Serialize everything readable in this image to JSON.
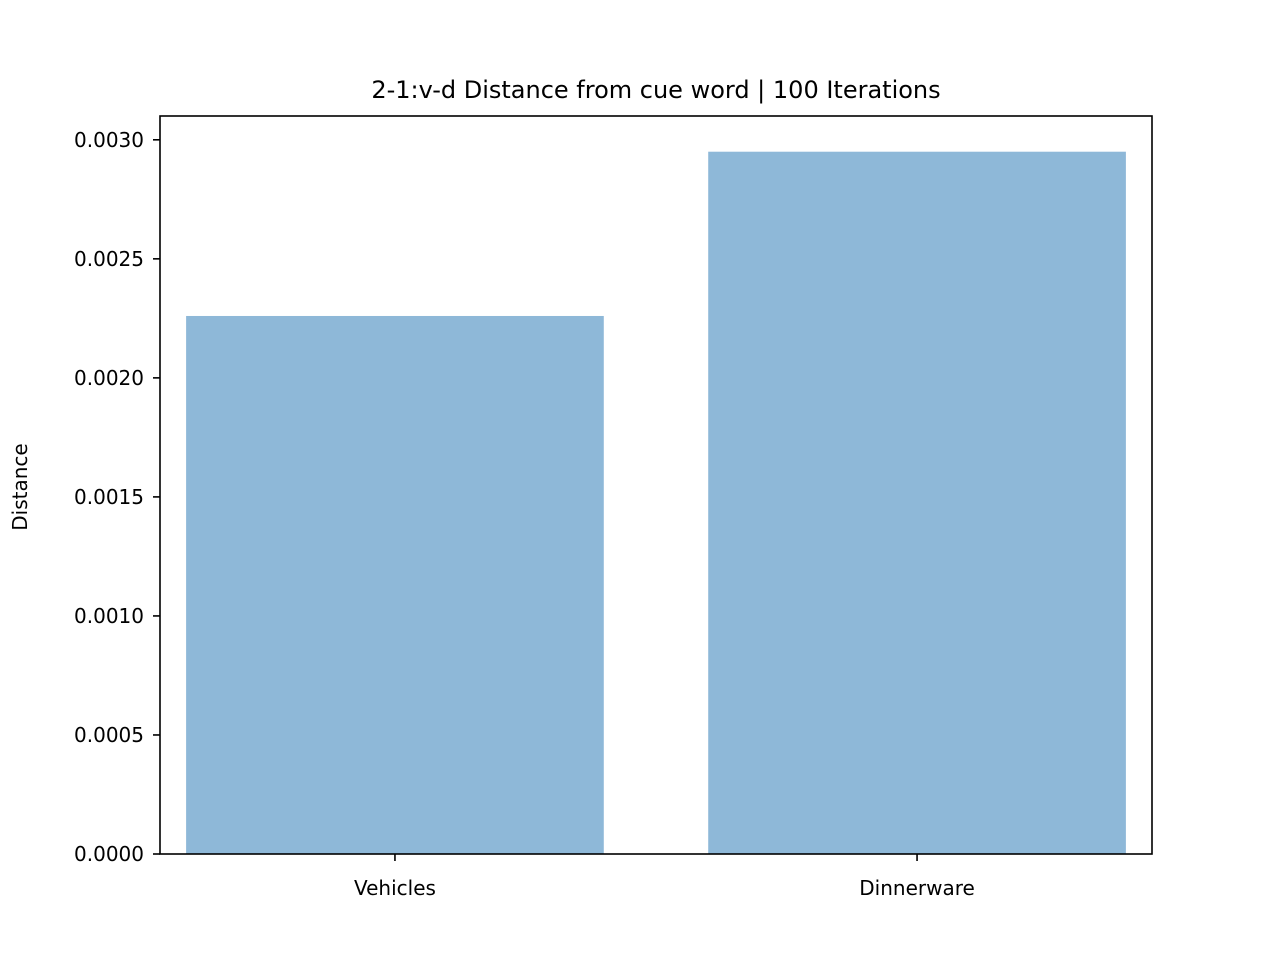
{
  "chart_data": {
    "type": "bar",
    "title": "2-1:v-d Distance from cue word | 100 Iterations",
    "xlabel": "",
    "ylabel": "Distance",
    "categories": [
      "Vehicles",
      "Dinnerware"
    ],
    "values": [
      0.00226,
      0.00295
    ],
    "ylim": [
      0,
      0.0031
    ],
    "yticks": [
      0.0,
      0.0005,
      0.001,
      0.0015,
      0.002,
      0.0025,
      0.003
    ],
    "ytick_labels": [
      "0.0000",
      "0.0005",
      "0.0010",
      "0.0015",
      "0.0020",
      "0.0025",
      "0.0030"
    ],
    "bar_color": "#8eb8d8",
    "grid": false,
    "legend": "none"
  }
}
